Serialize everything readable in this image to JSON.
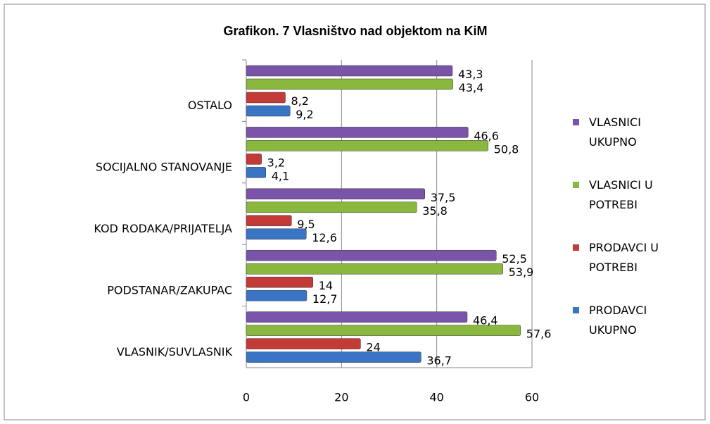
{
  "chart_data": {
    "type": "bar",
    "orientation": "horizontal",
    "title": "Grafikon. 7 Vlasništvo nad objektom na KiM",
    "categories": [
      "VLASNIK/SUVLASNIK",
      "PODSTANAR/ZAKUPAC",
      "KOD RODAKA/PRIJATELJA",
      "SOCIJALNO STANOVANJE",
      "OSTALO"
    ],
    "series": [
      {
        "name": "PRODAVCI UKUPNO",
        "color": "#3a74c4",
        "values": [
          36.7,
          12.7,
          12.6,
          4.1,
          9.2
        ],
        "value_labels": [
          "36,7",
          "12,7",
          "12,6",
          "4,1",
          "9,2"
        ]
      },
      {
        "name": "PRODAVCI U POTREBI",
        "color": "#c43a36",
        "values": [
          24,
          14,
          9.5,
          3.2,
          8.2
        ],
        "value_labels": [
          "24",
          "14",
          "9,5",
          "3,2",
          "8,2"
        ]
      },
      {
        "name": "VLASNICI U POTREBI",
        "color": "#8ab83e",
        "values": [
          57.6,
          53.9,
          35.8,
          50.8,
          43.4
        ],
        "value_labels": [
          "57,6",
          "53,9",
          "35,8",
          "50,8",
          "43,4"
        ]
      },
      {
        "name": "VLASNICI UKUPNO",
        "color": "#7a54a8",
        "values": [
          46.4,
          52.5,
          37.5,
          46.6,
          43.3
        ],
        "value_labels": [
          "46,4",
          "52,5",
          "37,5",
          "46,6",
          "43,3"
        ]
      }
    ],
    "xlim": [
      0,
      60
    ],
    "xticks": [
      0,
      20,
      40,
      60
    ],
    "grid": true,
    "legend": "right"
  }
}
